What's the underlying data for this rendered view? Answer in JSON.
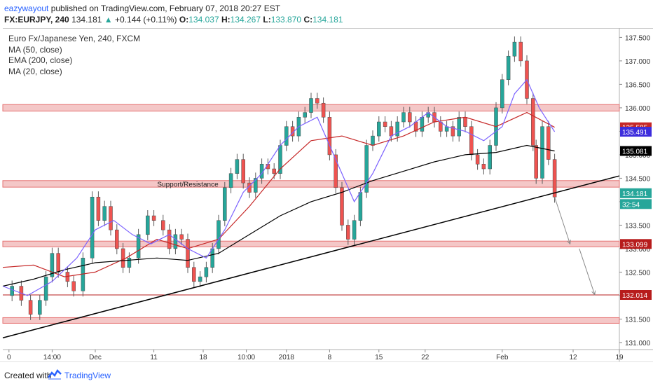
{
  "header": {
    "author": "eazywayout",
    "published_text": " published on TradingView.com, February 07, 2018 20:27 EST",
    "symbol": "FX:EURJPY, 240",
    "last": "134.181",
    "change_arrow": "▲",
    "change": "+0.144 (+0.11%)",
    "open_label": "O:",
    "open": "134.037",
    "high_label": "H:",
    "high": "134.267",
    "low_label": "L:",
    "low": "133.870",
    "close_label": "C:",
    "close": "134.181"
  },
  "legend": {
    "title": "Euro Fx/Japanese Yen, 240, FXCM",
    "items": [
      "MA (50, close)",
      "EMA (200, close)",
      "MA (20, close)"
    ]
  },
  "footer": {
    "created_with": "Created with",
    "brand": "TradingView",
    "logo_icon": "tradingview-logo-icon"
  },
  "chart_data": {
    "type": "candlestick",
    "title": "Euro Fx/Japanese Yen, 240, FXCM",
    "ylim": [
      130.85,
      137.7
    ],
    "y_ticks": [
      131.0,
      131.5,
      132.0,
      132.5,
      133.0,
      133.5,
      134.0,
      134.5,
      135.0,
      135.5,
      136.0,
      136.5,
      137.0,
      137.5
    ],
    "x_range": [
      0,
      100
    ],
    "x_ticks": [
      {
        "x": 1,
        "label": "0"
      },
      {
        "x": 8,
        "label": "14:00"
      },
      {
        "x": 15,
        "label": "Dec"
      },
      {
        "x": 24.5,
        "label": "11"
      },
      {
        "x": 32.5,
        "label": "18"
      },
      {
        "x": 39.5,
        "label": "10:00"
      },
      {
        "x": 46,
        "label": "2018"
      },
      {
        "x": 53,
        "label": "8"
      },
      {
        "x": 61,
        "label": "15"
      },
      {
        "x": 68.5,
        "label": "22"
      },
      {
        "x": 81,
        "label": "Feb"
      },
      {
        "x": 92.5,
        "label": "12"
      },
      {
        "x": 100,
        "label": "19"
      }
    ],
    "price_close_series": [
      [
        0,
        132.0
      ],
      [
        1.5,
        132.2
      ],
      [
        3,
        131.9
      ],
      [
        4.5,
        131.6
      ],
      [
        6,
        131.9
      ],
      [
        7,
        132.4
      ],
      [
        8,
        132.9
      ],
      [
        9,
        132.5
      ],
      [
        10.5,
        132.3
      ],
      [
        11.5,
        132.1
      ],
      [
        13,
        132.8
      ],
      [
        14.5,
        134.1
      ],
      [
        15.5,
        133.6
      ],
      [
        16.5,
        133.9
      ],
      [
        17.5,
        133.4
      ],
      [
        18.5,
        133.0
      ],
      [
        19.5,
        132.6
      ],
      [
        20.5,
        132.8
      ],
      [
        22,
        133.3
      ],
      [
        23.5,
        133.7
      ],
      [
        24.5,
        133.6
      ],
      [
        26,
        133.4
      ],
      [
        27,
        133.0
      ],
      [
        28,
        133.3
      ],
      [
        29,
        133.2
      ],
      [
        30,
        132.6
      ],
      [
        31,
        132.3
      ],
      [
        32,
        132.4
      ],
      [
        33,
        132.6
      ],
      [
        34,
        133.0
      ],
      [
        35,
        133.6
      ],
      [
        36,
        134.3
      ],
      [
        37,
        134.6
      ],
      [
        38,
        134.9
      ],
      [
        39,
        134.4
      ],
      [
        40,
        134.2
      ],
      [
        41,
        134.5
      ],
      [
        42,
        134.8
      ],
      [
        43,
        134.7
      ],
      [
        44,
        134.6
      ],
      [
        45,
        135.2
      ],
      [
        46,
        135.6
      ],
      [
        47,
        135.4
      ],
      [
        48,
        135.8
      ],
      [
        49,
        135.9
      ],
      [
        50,
        136.2
      ],
      [
        51,
        136.1
      ],
      [
        52,
        135.8
      ],
      [
        53,
        135.0
      ],
      [
        54,
        134.3
      ],
      [
        55,
        133.5
      ],
      [
        56,
        133.2
      ],
      [
        57,
        133.6
      ],
      [
        58,
        134.2
      ],
      [
        59,
        135.2
      ],
      [
        60,
        135.4
      ],
      [
        61,
        135.7
      ],
      [
        62,
        135.6
      ],
      [
        63,
        135.4
      ],
      [
        64,
        135.7
      ],
      [
        65,
        135.9
      ],
      [
        66,
        135.7
      ],
      [
        67,
        135.5
      ],
      [
        68,
        135.8
      ],
      [
        69,
        135.9
      ],
      [
        70,
        135.7
      ],
      [
        71,
        135.5
      ],
      [
        72,
        135.6
      ],
      [
        73,
        135.4
      ],
      [
        74,
        135.8
      ],
      [
        75,
        135.6
      ],
      [
        76,
        135.0
      ],
      [
        77,
        134.8
      ],
      [
        78,
        134.7
      ],
      [
        79,
        135.2
      ],
      [
        80,
        136.0
      ],
      [
        81,
        136.6
      ],
      [
        82,
        137.1
      ],
      [
        83,
        137.4
      ],
      [
        84,
        137.0
      ],
      [
        85,
        136.2
      ],
      [
        86,
        135.2
      ],
      [
        86.5,
        134.5
      ],
      [
        87.5,
        135.6
      ],
      [
        88.5,
        134.9
      ],
      [
        89.5,
        134.1
      ]
    ],
    "series": [
      {
        "name": "MA (50, close)",
        "color": "#c62828",
        "points": [
          [
            0,
            132.6
          ],
          [
            5,
            132.65
          ],
          [
            10,
            132.4
          ],
          [
            15,
            132.5
          ],
          [
            20,
            132.8
          ],
          [
            25,
            133.2
          ],
          [
            30,
            133.0
          ],
          [
            35,
            133.2
          ],
          [
            40,
            133.9
          ],
          [
            45,
            134.7
          ],
          [
            50,
            135.3
          ],
          [
            55,
            135.4
          ],
          [
            60,
            135.2
          ],
          [
            65,
            135.4
          ],
          [
            70,
            135.7
          ],
          [
            75,
            135.8
          ],
          [
            80,
            135.6
          ],
          [
            85,
            135.9
          ],
          [
            89.5,
            135.585
          ]
        ]
      },
      {
        "name": "EMA (200, close)",
        "color": "#000000",
        "points": [
          [
            0,
            132.2
          ],
          [
            5,
            132.35
          ],
          [
            10,
            132.55
          ],
          [
            15,
            132.7
          ],
          [
            20,
            132.75
          ],
          [
            25,
            132.8
          ],
          [
            30,
            132.75
          ],
          [
            35,
            132.9
          ],
          [
            40,
            133.3
          ],
          [
            45,
            133.7
          ],
          [
            50,
            134.0
          ],
          [
            55,
            134.2
          ],
          [
            60,
            134.45
          ],
          [
            65,
            134.65
          ],
          [
            70,
            134.85
          ],
          [
            75,
            135.0
          ],
          [
            80,
            135.05
          ],
          [
            85,
            135.2
          ],
          [
            89.5,
            135.081
          ]
        ]
      },
      {
        "name": "MA (20, close)",
        "color": "#7b61ff",
        "points": [
          [
            0,
            132.2
          ],
          [
            4,
            132.0
          ],
          [
            8,
            132.3
          ],
          [
            12,
            132.8
          ],
          [
            15,
            133.4
          ],
          [
            18,
            133.6
          ],
          [
            21,
            133.3
          ],
          [
            24,
            133.1
          ],
          [
            27,
            133.3
          ],
          [
            30,
            133.0
          ],
          [
            33,
            132.8
          ],
          [
            36,
            133.4
          ],
          [
            39,
            134.2
          ],
          [
            42,
            134.6
          ],
          [
            45,
            135.2
          ],
          [
            48,
            135.6
          ],
          [
            51,
            135.8
          ],
          [
            54,
            134.9
          ],
          [
            57,
            134.0
          ],
          [
            60,
            134.6
          ],
          [
            63,
            135.4
          ],
          [
            66,
            135.6
          ],
          [
            69,
            135.9
          ],
          [
            72,
            135.6
          ],
          [
            75,
            135.5
          ],
          [
            78,
            135.3
          ],
          [
            81,
            135.6
          ],
          [
            83,
            136.3
          ],
          [
            85,
            136.6
          ],
          [
            87,
            136.0
          ],
          [
            89.5,
            135.491
          ]
        ]
      }
    ],
    "horizontal_zones": [
      {
        "low": 135.93,
        "high": 136.07
      },
      {
        "low": 134.31,
        "high": 134.45
      },
      {
        "low": 133.04,
        "high": 133.16
      },
      {
        "low": 131.41,
        "high": 131.53
      }
    ],
    "horizontal_line": {
      "value": 132.014,
      "color": "#b71c1c"
    },
    "trendline": {
      "from": [
        0,
        131.1
      ],
      "to": [
        100,
        134.55
      ],
      "color": "#000000"
    },
    "projection_arrows": [
      {
        "from": [
          89.5,
          134.1
        ],
        "to": [
          92,
          133.1
        ]
      },
      {
        "from": [
          93.5,
          133.0
        ],
        "to": [
          96,
          132.02
        ]
      }
    ],
    "annotations": [
      {
        "text": "Support/Resistance",
        "x": 30,
        "y": 134.38
      }
    ],
    "price_labels": [
      {
        "value": 135.585,
        "text": "135.585",
        "bg": "#c62828",
        "fg": "#ffffff"
      },
      {
        "value": 135.491,
        "text": "135.491",
        "bg": "#3d2ddc",
        "fg": "#ffffff"
      },
      {
        "value": 135.081,
        "text": "135.081",
        "bg": "#000000",
        "fg": "#ffffff"
      },
      {
        "value": 134.181,
        "text": "134.181",
        "bg": "#26a69a",
        "fg": "#ffffff"
      },
      {
        "value": 133.95,
        "text": "32:54",
        "bg": "#26a69a",
        "fg": "#ffffff"
      },
      {
        "value": 133.099,
        "text": "133.099",
        "bg": "#b71c1c",
        "fg": "#ffffff"
      },
      {
        "value": 132.014,
        "text": "132.014",
        "bg": "#b71c1c",
        "fg": "#ffffff"
      }
    ],
    "colors": {
      "up": "#26a69a",
      "down": "#ef5350",
      "zone_fill": "#f4c7c7",
      "zone_edge": "#e57373"
    }
  }
}
